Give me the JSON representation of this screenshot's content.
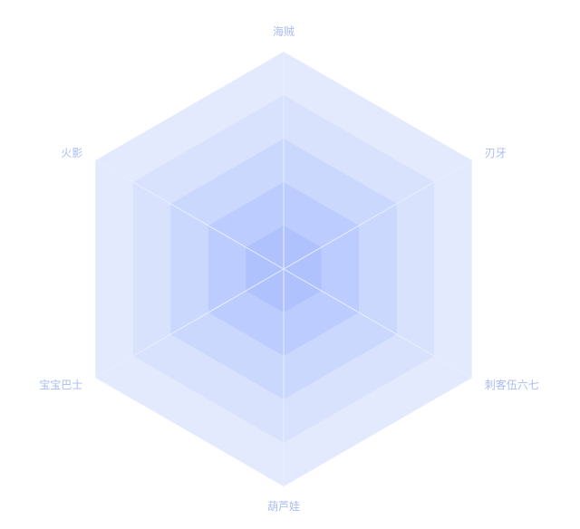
{
  "chart_data": {
    "type": "radar",
    "indicators": [
      "海贼",
      "刃牙",
      "刺客伍六七",
      "葫芦娃",
      "宝宝巴士",
      "火影"
    ],
    "levels": 5,
    "series": [],
    "title": "",
    "legend": "none",
    "colors": {
      "label": "#a9bdf0",
      "rings_outer_to_inner": [
        "#e4eafd",
        "#d8e2fd",
        "#cbd8fd",
        "#bcccfe",
        "#b0c2fd"
      ],
      "split_line": "#e8eefd"
    }
  }
}
